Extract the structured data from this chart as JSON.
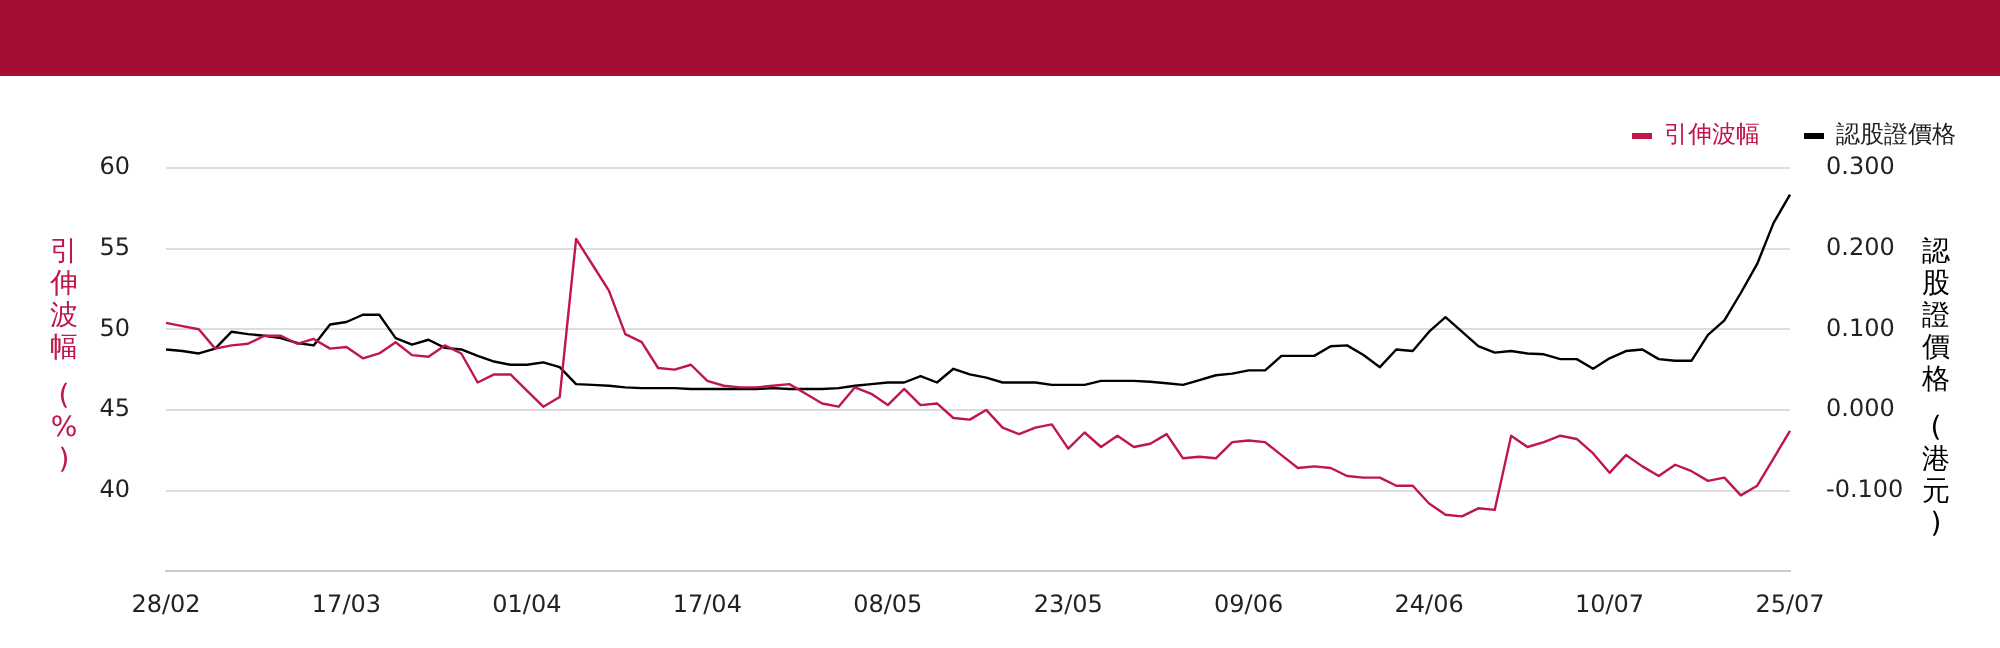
{
  "chart_data": {
    "type": "line",
    "categories": [
      "28/02",
      null,
      null,
      null,
      null,
      null,
      null,
      null,
      null,
      null,
      null,
      "17/03",
      null,
      null,
      null,
      null,
      null,
      null,
      null,
      null,
      null,
      null,
      "01/04",
      null,
      null,
      null,
      null,
      null,
      null,
      null,
      null,
      null,
      null,
      "17/04",
      null,
      null,
      null,
      null,
      null,
      null,
      null,
      null,
      null,
      null,
      "08/05",
      null,
      null,
      null,
      null,
      null,
      null,
      null,
      null,
      null,
      null,
      "23/05",
      null,
      null,
      null,
      null,
      null,
      null,
      null,
      null,
      null,
      null,
      "09/06",
      null,
      null,
      null,
      null,
      null,
      null,
      null,
      null,
      null,
      null,
      "24/06",
      null,
      null,
      null,
      null,
      null,
      null,
      null,
      null,
      null,
      null,
      "10/07",
      null,
      null,
      null,
      null,
      null,
      null,
      null,
      null,
      null,
      null,
      "25/07"
    ],
    "series": [
      {
        "name": "引伸波幅",
        "color": "#c0174a",
        "values": [
          50.4,
          50.2,
          50.0,
          48.8,
          49.0,
          49.1,
          49.6,
          49.6,
          49.1,
          49.4,
          48.8,
          48.9,
          48.2,
          48.5,
          49.2,
          48.4,
          48.3,
          49.0,
          48.5,
          46.7,
          47.2,
          47.2,
          46.2,
          45.2,
          45.8,
          55.6,
          54.0,
          52.4,
          49.7,
          49.2,
          47.6,
          47.5,
          47.8,
          46.8,
          46.5,
          46.4,
          46.4,
          46.5,
          46.6,
          46.0,
          45.4,
          45.2,
          46.4,
          46.0,
          45.3,
          46.3,
          45.3,
          45.4,
          44.5,
          44.4,
          45.0,
          43.9,
          43.5,
          43.9,
          44.1,
          42.6,
          43.6,
          42.7,
          43.4,
          42.7,
          42.9,
          43.5,
          42.0,
          42.1,
          42.0,
          43.0,
          43.1,
          43.0,
          42.2,
          41.4,
          41.5,
          41.4,
          40.9,
          40.8,
          40.8,
          40.3,
          40.3,
          39.2,
          38.5,
          38.4,
          38.9,
          38.8,
          43.4,
          42.7,
          43.0,
          43.4,
          43.2,
          42.3,
          41.1,
          42.2,
          41.5,
          40.9,
          41.6,
          41.2,
          40.6,
          40.8,
          39.7,
          40.3,
          42.0,
          43.7
        ]
      },
      {
        "name": "認股證價格",
        "color": "#000000",
        "axis": "y2",
        "values": [
          0.075,
          0.073,
          0.07,
          0.076,
          0.097,
          0.094,
          0.092,
          0.089,
          0.083,
          0.08,
          0.106,
          0.109,
          0.118,
          0.118,
          0.089,
          0.081,
          0.087,
          0.077,
          0.075,
          0.067,
          0.06,
          0.056,
          0.056,
          0.059,
          0.053,
          0.032,
          0.031,
          0.03,
          0.028,
          0.027,
          0.027,
          0.027,
          0.026,
          0.026,
          0.026,
          0.026,
          0.026,
          0.027,
          0.026,
          0.026,
          0.026,
          0.027,
          0.03,
          0.032,
          0.034,
          0.034,
          0.042,
          0.034,
          0.051,
          0.044,
          0.04,
          0.034,
          0.034,
          0.034,
          0.031,
          0.031,
          0.031,
          0.036,
          0.036,
          0.036,
          0.035,
          0.033,
          0.031,
          0.037,
          0.043,
          0.045,
          0.049,
          0.049,
          0.067,
          0.067,
          0.067,
          0.079,
          0.08,
          0.068,
          0.053,
          0.075,
          0.073,
          0.097,
          0.115,
          0.097,
          0.079,
          0.071,
          0.073,
          0.07,
          0.069,
          0.063,
          0.063,
          0.051,
          0.064,
          0.073,
          0.075,
          0.063,
          0.061,
          0.061,
          0.093,
          0.111,
          0.145,
          0.181,
          0.232,
          0.267
        ]
      }
    ],
    "ylabel": "引伸波幅 (%)",
    "y2label": "認股證價格 (港元)",
    "ylim": [
      35,
      60
    ],
    "yticks": [
      40,
      45,
      50,
      55,
      60
    ],
    "y2lim": [
      -0.2,
      0.3
    ],
    "y2ticks": [
      {
        "value": -0.1,
        "label": "-0.100"
      },
      {
        "value": 0,
        "label": "0.000"
      },
      {
        "value": 0.1,
        "label": "0.100"
      },
      {
        "value": 0.2,
        "label": "0.200"
      },
      {
        "value": 0.3,
        "label": "0.300"
      }
    ],
    "grid": "y",
    "legend": "top right",
    "marker": "none",
    "line_style": "solid"
  }
}
